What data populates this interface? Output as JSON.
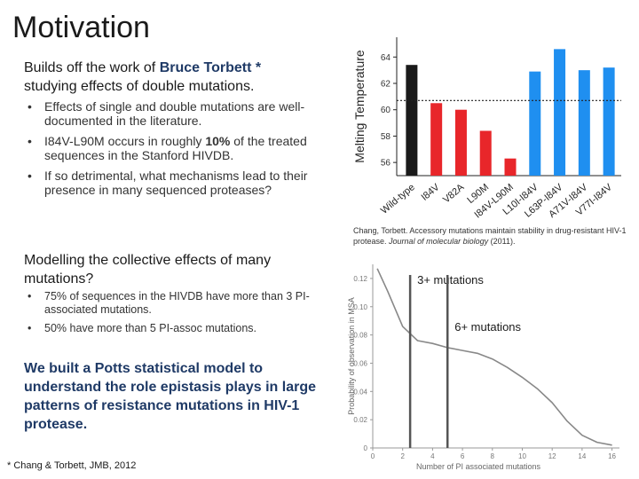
{
  "slide": {
    "title": "Motivation",
    "intro": {
      "prefix": "Builds off the work of",
      "highlight": "Bruce Torbett *",
      "suffix": "studying effects of double mutations."
    },
    "bullets1": [
      {
        "text": "Effects of single and double mutations are well-documented in the literature."
      },
      {
        "before": "I84V-L90M occurs in roughly",
        "bold": "10%",
        "after": "of the treated sequences in the Stanford HIVDB."
      },
      {
        "text": "If so detrimental, what mechanisms lead to their presence in many sequenced proteases?"
      }
    ],
    "section2_heading": "Modelling the collective effects of many mutations?",
    "bullets2": [
      "75% of sequences in the HIVDB have more than 3 PI-associated mutations.",
      "50% have more than 5 PI-assoc mutations."
    ],
    "section3_heading": "We built a Potts statistical model to understand the role epistasis plays in large patterns of resistance mutations in HIV-1 protease.",
    "footnote": "* Chang & Torbett, JMB, 2012",
    "caption": {
      "text": "Chang, Torbett. Accessory mutations maintain stability in drug-resistant HIV-1 protease.",
      "journal": "Journal of molecular biology",
      "year": "(2011)."
    }
  },
  "chart_data": [
    {
      "type": "bar",
      "ylabel": "Melting Temperature",
      "categories": [
        "Wild-type",
        "I84V",
        "V82A",
        "L90M",
        "I84V-L90M",
        "L10I-I84V",
        "L63P-I84V",
        "A71V-I84V",
        "V77I-I84V"
      ],
      "values": [
        63.4,
        60.5,
        60.0,
        58.4,
        56.3,
        62.9,
        64.6,
        63.0,
        63.2
      ],
      "colors": [
        "#1a1a1a",
        "#e8262a",
        "#e8262a",
        "#e8262a",
        "#e8262a",
        "#1f8ff0",
        "#1f8ff0",
        "#1f8ff0",
        "#1f8ff0"
      ],
      "reference_line": 60.7,
      "yticks": [
        "56",
        "58",
        "60",
        "62",
        "64"
      ],
      "ylim": [
        55,
        65.5
      ]
    },
    {
      "type": "line",
      "ylabel": "Probability of observation in MSA",
      "xlabel": "Number of PI associated mutations",
      "xticks": [
        "0",
        "2",
        "4",
        "6",
        "8",
        "10",
        "12",
        "14",
        "16"
      ],
      "yticks": [
        "0",
        "0.02",
        "0.04",
        "0.06",
        "0.08",
        "0.10",
        "0.12"
      ],
      "xlim": [
        0,
        16.5
      ],
      "ylim": [
        0,
        0.13
      ],
      "x": [
        0.3,
        1,
        2,
        3,
        4,
        5,
        6,
        7,
        8,
        9,
        10,
        11,
        12,
        13,
        14,
        15,
        16
      ],
      "y": [
        0.127,
        0.111,
        0.086,
        0.076,
        0.074,
        0.071,
        0.069,
        0.067,
        0.063,
        0.057,
        0.05,
        0.042,
        0.032,
        0.019,
        0.009,
        0.004,
        0.002
      ],
      "markers": [
        {
          "x": 2.5,
          "label": "3+ mutations"
        },
        {
          "x": 5,
          "label": "6+ mutations"
        }
      ]
    }
  ]
}
